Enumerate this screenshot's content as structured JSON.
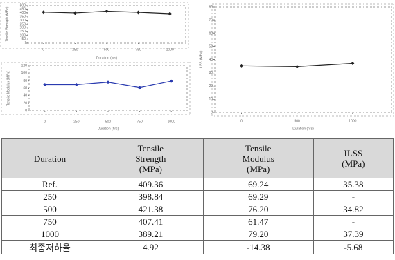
{
  "chart_data": [
    {
      "type": "line",
      "x_label": "Duration (hrs)",
      "y_label": "Tensile Strength (MPa)",
      "x": [
        0,
        250,
        500,
        750,
        1000
      ],
      "xlim": [
        -125,
        1125
      ],
      "xticks": [
        0,
        250,
        500,
        750,
        1000
      ],
      "ylim": [
        0,
        500
      ],
      "yticks": [
        0,
        50,
        100,
        150,
        200,
        250,
        300,
        350,
        400,
        450,
        500
      ],
      "series": [
        {
          "color": "#222222",
          "values": [
            409.36,
            398.84,
            421.38,
            407.41,
            389.21
          ]
        }
      ]
    },
    {
      "type": "line",
      "x_label": "Duration (hrs)",
      "y_label": "Tensile Modulus (MPa)",
      "x": [
        0,
        250,
        500,
        750,
        1000
      ],
      "xlim": [
        -125,
        1125
      ],
      "xticks": [
        0,
        250,
        500,
        750,
        1000
      ],
      "ylim": [
        0,
        120
      ],
      "yticks": [
        0,
        20,
        40,
        60,
        80,
        100,
        120
      ],
      "series": [
        {
          "color": "#2a3bb0",
          "values": [
            69.24,
            69.29,
            76.2,
            61.47,
            79.2
          ]
        }
      ]
    },
    {
      "type": "line",
      "x_label": "Duration (hrs)",
      "y_label": "ILSS (MPa)",
      "x": [
        0,
        500,
        1000
      ],
      "xlim": [
        -240,
        1350
      ],
      "xticks": [
        0,
        500,
        1000
      ],
      "ylim": [
        0,
        80
      ],
      "yticks": [
        0,
        10,
        20,
        30,
        40,
        50,
        60,
        70,
        80
      ],
      "series": [
        {
          "color": "#222222",
          "values": [
            35.38,
            34.82,
            37.39
          ]
        }
      ]
    }
  ],
  "table": {
    "header": [
      "Duration",
      "Tensile\nStrength\n(MPa)",
      "Tensile\nModulus\n(MPa)",
      "ILSS\n(MPa)"
    ],
    "rows": [
      [
        "Ref.",
        "409.36",
        "69.24",
        "35.38"
      ],
      [
        "250",
        "398.84",
        "69.29",
        "-"
      ],
      [
        "500",
        "421.38",
        "76.20",
        "34.82"
      ],
      [
        "750",
        "407.41",
        "61.47",
        "-"
      ],
      [
        "1000",
        "389.21",
        "79.20",
        "37.39"
      ],
      [
        "최종저하율",
        "4.92",
        "-14.38",
        "-5.68"
      ]
    ]
  }
}
